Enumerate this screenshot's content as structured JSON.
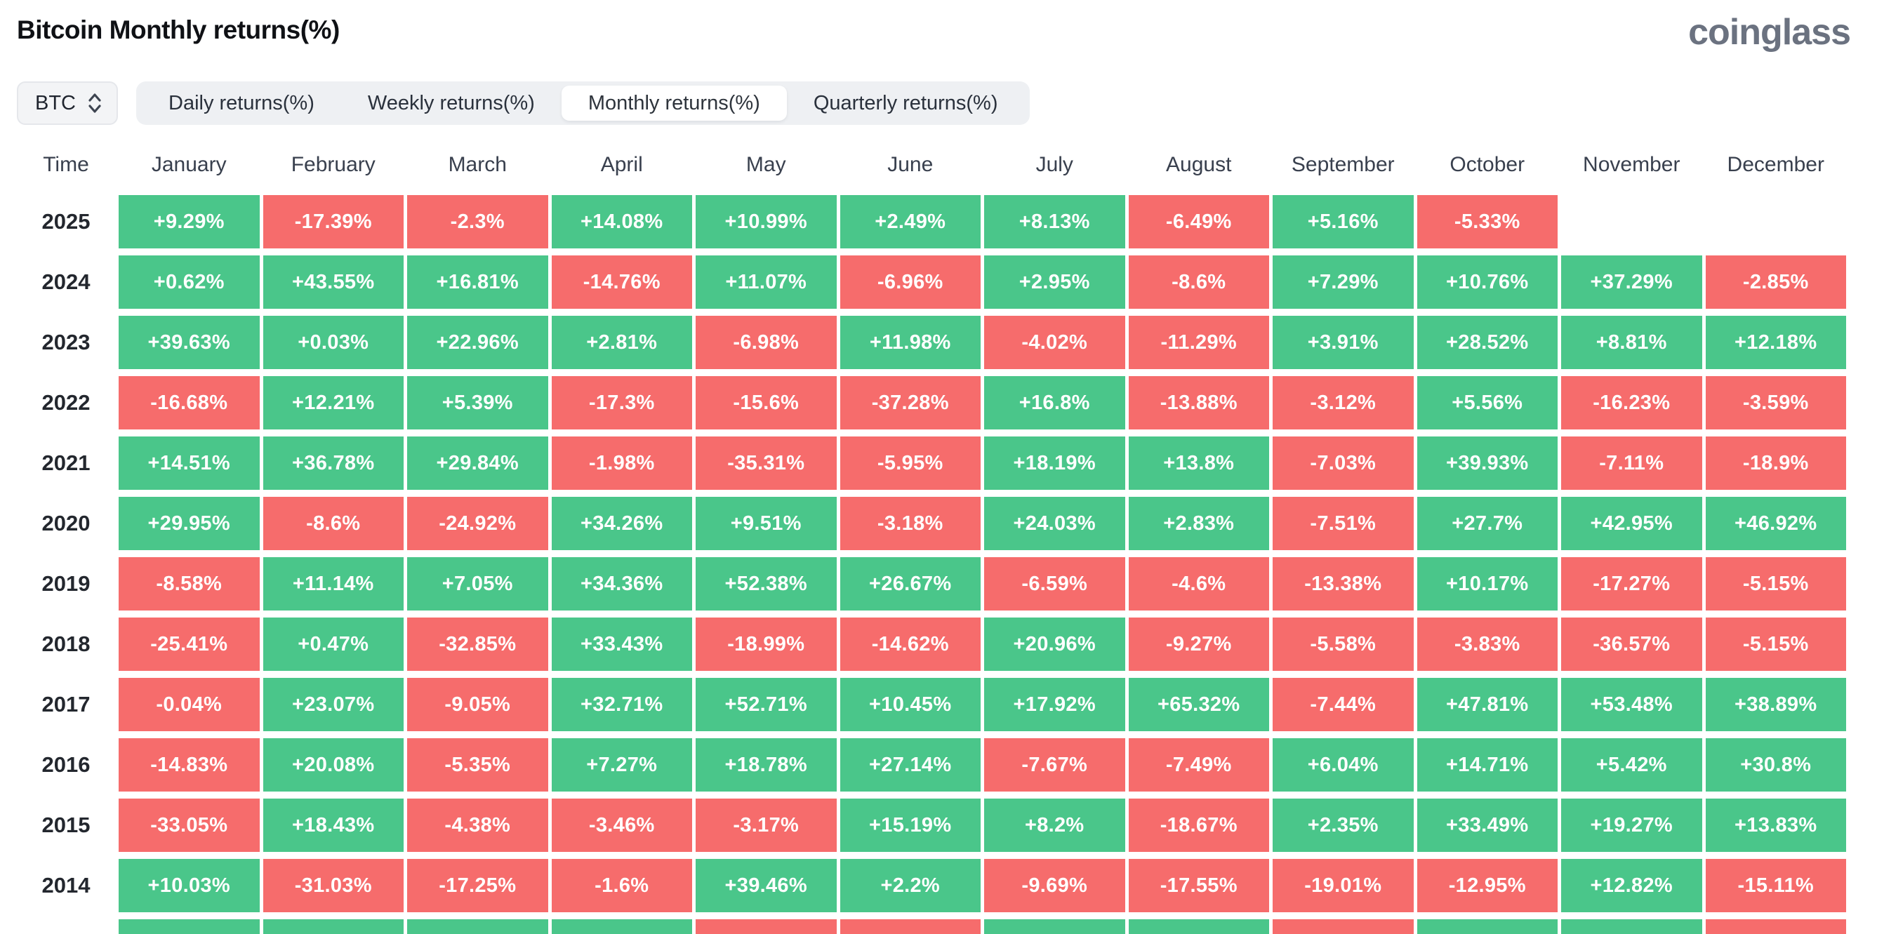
{
  "page": {
    "title": "Bitcoin Monthly returns(%)",
    "brand": "coinglass"
  },
  "controls": {
    "symbol_select": {
      "value": "BTC",
      "icon": "updown-chevrons-icon"
    },
    "tabs": [
      {
        "label": "Daily returns(%)",
        "active": false
      },
      {
        "label": "Weekly returns(%)",
        "active": false
      },
      {
        "label": "Monthly returns(%)",
        "active": true
      },
      {
        "label": "Quarterly returns(%)",
        "active": false
      }
    ]
  },
  "colors": {
    "positive": "#4AC68A",
    "negative": "#F66C6C",
    "background": "#ffffff",
    "brand_gray": "#6b7280"
  },
  "chart_data": {
    "type": "heatmap",
    "title": "Bitcoin Monthly returns(%)",
    "row_header": "Time",
    "columns": [
      "January",
      "February",
      "March",
      "April",
      "May",
      "June",
      "July",
      "August",
      "September",
      "October",
      "November",
      "December"
    ],
    "legend": "green = positive monthly return, red = negative monthly return",
    "rows": [
      {
        "year": "2025",
        "values": [
          "+9.29%",
          "-17.39%",
          "-2.3%",
          "+14.08%",
          "+10.99%",
          "+2.49%",
          "+8.13%",
          "-6.49%",
          "+5.16%",
          "-5.33%",
          "",
          ""
        ]
      },
      {
        "year": "2024",
        "values": [
          "+0.62%",
          "+43.55%",
          "+16.81%",
          "-14.76%",
          "+11.07%",
          "-6.96%",
          "+2.95%",
          "-8.6%",
          "+7.29%",
          "+10.76%",
          "+37.29%",
          "-2.85%"
        ]
      },
      {
        "year": "2023",
        "values": [
          "+39.63%",
          "+0.03%",
          "+22.96%",
          "+2.81%",
          "-6.98%",
          "+11.98%",
          "-4.02%",
          "-11.29%",
          "+3.91%",
          "+28.52%",
          "+8.81%",
          "+12.18%"
        ]
      },
      {
        "year": "2022",
        "values": [
          "-16.68%",
          "+12.21%",
          "+5.39%",
          "-17.3%",
          "-15.6%",
          "-37.28%",
          "+16.8%",
          "-13.88%",
          "-3.12%",
          "+5.56%",
          "-16.23%",
          "-3.59%"
        ]
      },
      {
        "year": "2021",
        "values": [
          "+14.51%",
          "+36.78%",
          "+29.84%",
          "-1.98%",
          "-35.31%",
          "-5.95%",
          "+18.19%",
          "+13.8%",
          "-7.03%",
          "+39.93%",
          "-7.11%",
          "-18.9%"
        ]
      },
      {
        "year": "2020",
        "values": [
          "+29.95%",
          "-8.6%",
          "-24.92%",
          "+34.26%",
          "+9.51%",
          "-3.18%",
          "+24.03%",
          "+2.83%",
          "-7.51%",
          "+27.7%",
          "+42.95%",
          "+46.92%"
        ]
      },
      {
        "year": "2019",
        "values": [
          "-8.58%",
          "+11.14%",
          "+7.05%",
          "+34.36%",
          "+52.38%",
          "+26.67%",
          "-6.59%",
          "-4.6%",
          "-13.38%",
          "+10.17%",
          "-17.27%",
          "-5.15%"
        ]
      },
      {
        "year": "2018",
        "values": [
          "-25.41%",
          "+0.47%",
          "-32.85%",
          "+33.43%",
          "-18.99%",
          "-14.62%",
          "+20.96%",
          "-9.27%",
          "-5.58%",
          "-3.83%",
          "-36.57%",
          "-5.15%"
        ]
      },
      {
        "year": "2017",
        "values": [
          "-0.04%",
          "+23.07%",
          "-9.05%",
          "+32.71%",
          "+52.71%",
          "+10.45%",
          "+17.92%",
          "+65.32%",
          "-7.44%",
          "+47.81%",
          "+53.48%",
          "+38.89%"
        ]
      },
      {
        "year": "2016",
        "values": [
          "-14.83%",
          "+20.08%",
          "-5.35%",
          "+7.27%",
          "+18.78%",
          "+27.14%",
          "-7.67%",
          "-7.49%",
          "+6.04%",
          "+14.71%",
          "+5.42%",
          "+30.8%"
        ]
      },
      {
        "year": "2015",
        "values": [
          "-33.05%",
          "+18.43%",
          "-4.38%",
          "-3.46%",
          "-3.17%",
          "+15.19%",
          "+8.2%",
          "-18.67%",
          "+2.35%",
          "+33.49%",
          "+19.27%",
          "+13.83%"
        ]
      },
      {
        "year": "2014",
        "values": [
          "+10.03%",
          "-31.03%",
          "-17.25%",
          "-1.6%",
          "+39.46%",
          "+2.2%",
          "-9.69%",
          "-17.55%",
          "-19.01%",
          "-12.95%",
          "+12.82%",
          "-15.11%"
        ]
      }
    ],
    "partial_bottom_row_colors": [
      "pos",
      "pos",
      "pos",
      "pos",
      "neg",
      "neg",
      "pos",
      "pos",
      "neg",
      "pos",
      "pos",
      "neg"
    ]
  }
}
